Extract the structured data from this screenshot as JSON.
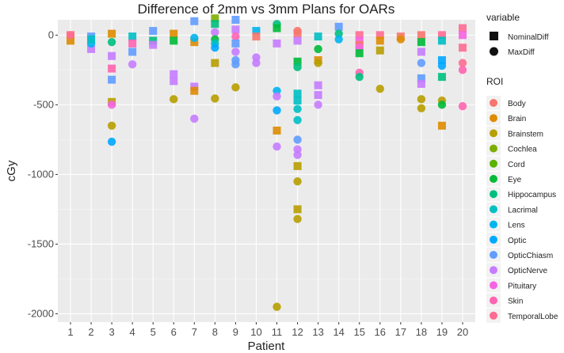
{
  "chart_data": {
    "type": "scatter",
    "title": "Difference of 2mm vs 3mm Plans for OARs",
    "xlabel": "Patient",
    "ylabel": "cGy",
    "x_categories": [
      "1",
      "2",
      "3",
      "4",
      "5",
      "6",
      "7",
      "8",
      "9",
      "10",
      "11",
      "12",
      "13",
      "14",
      "15",
      "16",
      "17",
      "18",
      "19",
      "20"
    ],
    "y_ticks": [
      0,
      -500,
      -1000,
      -1500,
      -2000
    ],
    "ylim": [
      -2060,
      110
    ],
    "legend_shape": {
      "title": "variable",
      "items": [
        {
          "label": "NominalDiff",
          "shape": "square"
        },
        {
          "label": "MaxDiff",
          "shape": "circle"
        }
      ]
    },
    "legend_roi": {
      "title": "ROI",
      "items": [
        {
          "label": "Body",
          "color": "#F8766D"
        },
        {
          "label": "Brain",
          "color": "#DE8C00"
        },
        {
          "label": "Brainstem",
          "color": "#B79F00"
        },
        {
          "label": "Cochlea",
          "color": "#7CAE00"
        },
        {
          "label": "Cord",
          "color": "#5BB300"
        },
        {
          "label": "Eye",
          "color": "#00BA38"
        },
        {
          "label": "Hippocampus",
          "color": "#00BF7D"
        },
        {
          "label": "Lacrimal",
          "color": "#00BFC4"
        },
        {
          "label": "Lens",
          "color": "#00B4F0"
        },
        {
          "label": "Optic",
          "color": "#00A9FF"
        },
        {
          "label": "OpticChiasm",
          "color": "#619CFF"
        },
        {
          "label": "OpticNerve",
          "color": "#C77CFF"
        },
        {
          "label": "Pituitary",
          "color": "#F564E3"
        },
        {
          "label": "Skin",
          "color": "#FF64B0"
        },
        {
          "label": "TemporalLobe",
          "color": "#FF6C91"
        }
      ]
    },
    "points": [
      {
        "p": 1,
        "roi": "Body",
        "v": "NominalDiff",
        "y": 0
      },
      {
        "p": 1,
        "roi": "Brain",
        "v": "NominalDiff",
        "y": -40
      },
      {
        "p": 1,
        "roi": "TemporalLobe",
        "v": "MaxDiff",
        "y": 0
      },
      {
        "p": 2,
        "roi": "OpticChiasm",
        "v": "NominalDiff",
        "y": -10
      },
      {
        "p": 2,
        "roi": "OpticNerve",
        "v": "NominalDiff",
        "y": -100
      },
      {
        "p": 2,
        "roi": "Lens",
        "v": "MaxDiff",
        "y": -60
      },
      {
        "p": 2,
        "roi": "Lacrimal",
        "v": "NominalDiff",
        "y": -30
      },
      {
        "p": 3,
        "roi": "Brain",
        "v": "NominalDiff",
        "y": 10
      },
      {
        "p": 3,
        "roi": "Hippocampus",
        "v": "MaxDiff",
        "y": -50
      },
      {
        "p": 3,
        "roi": "OpticNerve",
        "v": "NominalDiff",
        "y": -150
      },
      {
        "p": 3,
        "roi": "Skin",
        "v": "NominalDiff",
        "y": -240
      },
      {
        "p": 3,
        "roi": "OpticChiasm",
        "v": "NominalDiff",
        "y": -320
      },
      {
        "p": 3,
        "roi": "Brainstem",
        "v": "NominalDiff",
        "y": -480
      },
      {
        "p": 3,
        "roi": "Pituitary",
        "v": "MaxDiff",
        "y": -500
      },
      {
        "p": 3,
        "roi": "Brainstem",
        "v": "MaxDiff",
        "y": -650
      },
      {
        "p": 3,
        "roi": "Optic",
        "v": "MaxDiff",
        "y": -765
      },
      {
        "p": 4,
        "roi": "Lacrimal",
        "v": "NominalDiff",
        "y": -10
      },
      {
        "p": 4,
        "roi": "OpticChiasm",
        "v": "NominalDiff",
        "y": -120
      },
      {
        "p": 4,
        "roi": "OpticNerve",
        "v": "MaxDiff",
        "y": -210
      },
      {
        "p": 4,
        "roi": "Skin",
        "v": "NominalDiff",
        "y": -60
      },
      {
        "p": 5,
        "roi": "OpticChiasm",
        "v": "NominalDiff",
        "y": 30
      },
      {
        "p": 5,
        "roi": "Hippocampus",
        "v": "NominalDiff",
        "y": -40
      },
      {
        "p": 5,
        "roi": "OpticNerve",
        "v": "NominalDiff",
        "y": -70
      },
      {
        "p": 6,
        "roi": "Brain",
        "v": "NominalDiff",
        "y": 10
      },
      {
        "p": 6,
        "roi": "Eye",
        "v": "NominalDiff",
        "y": -40
      },
      {
        "p": 6,
        "roi": "OpticNerve",
        "v": "NominalDiff",
        "y": -280
      },
      {
        "p": 6,
        "roi": "OpticNerve",
        "v": "NominalDiff",
        "y": -330
      },
      {
        "p": 6,
        "roi": "Brainstem",
        "v": "MaxDiff",
        "y": -460
      },
      {
        "p": 7,
        "roi": "OpticChiasm",
        "v": "NominalDiff",
        "y": 100
      },
      {
        "p": 7,
        "roi": "Brain",
        "v": "NominalDiff",
        "y": -50
      },
      {
        "p": 7,
        "roi": "Lens",
        "v": "MaxDiff",
        "y": -20
      },
      {
        "p": 7,
        "roi": "OpticNerve",
        "v": "NominalDiff",
        "y": -370
      },
      {
        "p": 7,
        "roi": "Brain",
        "v": "NominalDiff",
        "y": -400
      },
      {
        "p": 7,
        "roi": "OpticNerve",
        "v": "MaxDiff",
        "y": -600
      },
      {
        "p": 8,
        "roi": "Cochlea",
        "v": "NominalDiff",
        "y": 120
      },
      {
        "p": 8,
        "roi": "Hippocampus",
        "v": "NominalDiff",
        "y": 80
      },
      {
        "p": 8,
        "roi": "OpticNerve",
        "v": "MaxDiff",
        "y": 20
      },
      {
        "p": 8,
        "roi": "Eye",
        "v": "MaxDiff",
        "y": -30
      },
      {
        "p": 8,
        "roi": "Lacrimal",
        "v": "MaxDiff",
        "y": -60
      },
      {
        "p": 8,
        "roi": "Optic",
        "v": "MaxDiff",
        "y": -90
      },
      {
        "p": 8,
        "roi": "Brainstem",
        "v": "NominalDiff",
        "y": -200
      },
      {
        "p": 8,
        "roi": "Brainstem",
        "v": "MaxDiff",
        "y": -455
      },
      {
        "p": 9,
        "roi": "OpticChiasm",
        "v": "NominalDiff",
        "y": 110
      },
      {
        "p": 9,
        "roi": "OpticNerve",
        "v": "NominalDiff",
        "y": 40
      },
      {
        "p": 9,
        "roi": "Skin",
        "v": "MaxDiff",
        "y": -10
      },
      {
        "p": 9,
        "roi": "OpticChiasm",
        "v": "NominalDiff",
        "y": -60
      },
      {
        "p": 9,
        "roi": "OpticNerve",
        "v": "MaxDiff",
        "y": -120
      },
      {
        "p": 9,
        "roi": "OpticChiasm",
        "v": "MaxDiff",
        "y": -180
      },
      {
        "p": 9,
        "roi": "OpticChiasm",
        "v": "MaxDiff",
        "y": -210
      },
      {
        "p": 9,
        "roi": "Brainstem",
        "v": "MaxDiff",
        "y": -375
      },
      {
        "p": 10,
        "roi": "Lens",
        "v": "NominalDiff",
        "y": 30
      },
      {
        "p": 10,
        "roi": "Body",
        "v": "NominalDiff",
        "y": -10
      },
      {
        "p": 10,
        "roi": "OpticNerve",
        "v": "MaxDiff",
        "y": -160
      },
      {
        "p": 10,
        "roi": "OpticNerve",
        "v": "MaxDiff",
        "y": -200
      },
      {
        "p": 11,
        "roi": "Hippocampus",
        "v": "MaxDiff",
        "y": 80
      },
      {
        "p": 11,
        "roi": "Eye",
        "v": "NominalDiff",
        "y": 50
      },
      {
        "p": 11,
        "roi": "OpticNerve",
        "v": "NominalDiff",
        "y": -60
      },
      {
        "p": 11,
        "roi": "Lens",
        "v": "MaxDiff",
        "y": -400
      },
      {
        "p": 11,
        "roi": "OpticNerve",
        "v": "MaxDiff",
        "y": -440
      },
      {
        "p": 11,
        "roi": "Optic",
        "v": "MaxDiff",
        "y": -540
      },
      {
        "p": 11,
        "roi": "Brain",
        "v": "NominalDiff",
        "y": -685
      },
      {
        "p": 11,
        "roi": "OpticNerve",
        "v": "MaxDiff",
        "y": -800
      },
      {
        "p": 11,
        "roi": "Brainstem",
        "v": "MaxDiff",
        "y": -1950
      },
      {
        "p": 12,
        "roi": "Body",
        "v": "MaxDiff",
        "y": 30
      },
      {
        "p": 12,
        "roi": "Body",
        "v": "NominalDiff",
        "y": 10
      },
      {
        "p": 12,
        "roi": "OpticNerve",
        "v": "NominalDiff",
        "y": -40
      },
      {
        "p": 12,
        "roi": "Eye",
        "v": "NominalDiff",
        "y": -190
      },
      {
        "p": 12,
        "roi": "Hippocampus",
        "v": "MaxDiff",
        "y": -230
      },
      {
        "p": 12,
        "roi": "Lacrimal",
        "v": "NominalDiff",
        "y": -420
      },
      {
        "p": 12,
        "roi": "Lacrimal",
        "v": "NominalDiff",
        "y": -470
      },
      {
        "p": 12,
        "roi": "Lacrimal",
        "v": "MaxDiff",
        "y": -530
      },
      {
        "p": 12,
        "roi": "Lacrimal",
        "v": "MaxDiff",
        "y": -610
      },
      {
        "p": 12,
        "roi": "OpticChiasm",
        "v": "MaxDiff",
        "y": -750
      },
      {
        "p": 12,
        "roi": "OpticNerve",
        "v": "MaxDiff",
        "y": -820
      },
      {
        "p": 12,
        "roi": "OpticNerve",
        "v": "MaxDiff",
        "y": -860
      },
      {
        "p": 12,
        "roi": "Brainstem",
        "v": "NominalDiff",
        "y": -940
      },
      {
        "p": 12,
        "roi": "Brainstem",
        "v": "MaxDiff",
        "y": -1050
      },
      {
        "p": 12,
        "roi": "Brainstem",
        "v": "NominalDiff",
        "y": -1250
      },
      {
        "p": 12,
        "roi": "Brainstem",
        "v": "MaxDiff",
        "y": -1320
      },
      {
        "p": 13,
        "roi": "Lacrimal",
        "v": "NominalDiff",
        "y": -10
      },
      {
        "p": 13,
        "roi": "Eye",
        "v": "MaxDiff",
        "y": -100
      },
      {
        "p": 13,
        "roi": "Brain",
        "v": "NominalDiff",
        "y": -180
      },
      {
        "p": 13,
        "roi": "Brainstem",
        "v": "MaxDiff",
        "y": -200
      },
      {
        "p": 13,
        "roi": "OpticNerve",
        "v": "NominalDiff",
        "y": -360
      },
      {
        "p": 13,
        "roi": "OpticNerve",
        "v": "NominalDiff",
        "y": -430
      },
      {
        "p": 13,
        "roi": "OpticNerve",
        "v": "MaxDiff",
        "y": -500
      },
      {
        "p": 14,
        "roi": "OpticChiasm",
        "v": "NominalDiff",
        "y": 60
      },
      {
        "p": 14,
        "roi": "Hippocampus",
        "v": "MaxDiff",
        "y": 10
      },
      {
        "p": 14,
        "roi": "Lens",
        "v": "MaxDiff",
        "y": -30
      },
      {
        "p": 15,
        "roi": "TemporalLobe",
        "v": "NominalDiff",
        "y": 0
      },
      {
        "p": 15,
        "roi": "Pituitary",
        "v": "NominalDiff",
        "y": -40
      },
      {
        "p": 15,
        "roi": "Body",
        "v": "NominalDiff",
        "y": -70
      },
      {
        "p": 15,
        "roi": "Pituitary",
        "v": "MaxDiff",
        "y": -90
      },
      {
        "p": 15,
        "roi": "Eye",
        "v": "NominalDiff",
        "y": -130
      },
      {
        "p": 15,
        "roi": "Skin",
        "v": "MaxDiff",
        "y": -270
      },
      {
        "p": 15,
        "roi": "Hippocampus",
        "v": "MaxDiff",
        "y": -300
      },
      {
        "p": 16,
        "roi": "TemporalLobe",
        "v": "NominalDiff",
        "y": 0
      },
      {
        "p": 16,
        "roi": "Brain",
        "v": "NominalDiff",
        "y": -40
      },
      {
        "p": 16,
        "roi": "Brainstem",
        "v": "NominalDiff",
        "y": -110
      },
      {
        "p": 16,
        "roi": "Brainstem",
        "v": "MaxDiff",
        "y": -385
      },
      {
        "p": 17,
        "roi": "Body",
        "v": "NominalDiff",
        "y": -10
      },
      {
        "p": 17,
        "roi": "Brain",
        "v": "MaxDiff",
        "y": -30
      },
      {
        "p": 18,
        "roi": "Body",
        "v": "NominalDiff",
        "y": 0
      },
      {
        "p": 18,
        "roi": "Eye",
        "v": "NominalDiff",
        "y": -50
      },
      {
        "p": 18,
        "roi": "OpticNerve",
        "v": "NominalDiff",
        "y": -120
      },
      {
        "p": 18,
        "roi": "OpticChiasm",
        "v": "MaxDiff",
        "y": -200
      },
      {
        "p": 18,
        "roi": "OpticChiasm",
        "v": "NominalDiff",
        "y": -310
      },
      {
        "p": 18,
        "roi": "OpticNerve",
        "v": "NominalDiff",
        "y": -350
      },
      {
        "p": 18,
        "roi": "Brainstem",
        "v": "MaxDiff",
        "y": -460
      },
      {
        "p": 18,
        "roi": "Brainstem",
        "v": "MaxDiff",
        "y": -525
      },
      {
        "p": 19,
        "roi": "TemporalLobe",
        "v": "NominalDiff",
        "y": 0
      },
      {
        "p": 19,
        "roi": "Lacrimal",
        "v": "NominalDiff",
        "y": -40
      },
      {
        "p": 19,
        "roi": "Optic",
        "v": "NominalDiff",
        "y": -180
      },
      {
        "p": 19,
        "roi": "Optic",
        "v": "MaxDiff",
        "y": -220
      },
      {
        "p": 19,
        "roi": "Hippocampus",
        "v": "NominalDiff",
        "y": -300
      },
      {
        "p": 19,
        "roi": "Brainstem",
        "v": "MaxDiff",
        "y": -470
      },
      {
        "p": 19,
        "roi": "Eye",
        "v": "MaxDiff",
        "y": -500
      },
      {
        "p": 19,
        "roi": "Brain",
        "v": "NominalDiff",
        "y": -650
      },
      {
        "p": 20,
        "roi": "TemporalLobe",
        "v": "NominalDiff",
        "y": 50
      },
      {
        "p": 20,
        "roi": "Pituitary",
        "v": "NominalDiff",
        "y": 0
      },
      {
        "p": 20,
        "roi": "TemporalLobe",
        "v": "NominalDiff",
        "y": -90
      },
      {
        "p": 20,
        "roi": "TemporalLobe",
        "v": "MaxDiff",
        "y": -200
      },
      {
        "p": 20,
        "roi": "Skin",
        "v": "MaxDiff",
        "y": -250
      },
      {
        "p": 20,
        "roi": "Skin",
        "v": "MaxDiff",
        "y": -510
      }
    ]
  }
}
